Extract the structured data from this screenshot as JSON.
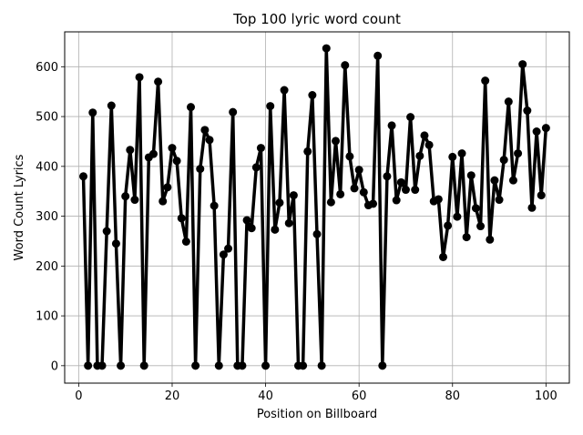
{
  "chart_data": {
    "type": "line",
    "title": "Top 100 lyric word count",
    "xlabel": "Position on Billboard",
    "ylabel": "Word Count Lyrics",
    "xlim": [
      -3,
      105
    ],
    "ylim": [
      -35,
      670
    ],
    "x_ticks": [
      0,
      20,
      40,
      60,
      80,
      100
    ],
    "y_ticks": [
      0,
      100,
      200,
      300,
      400,
      500,
      600
    ],
    "grid": true,
    "marker": "circle",
    "line_color": "#000000",
    "series": [
      {
        "x": [
          1,
          2,
          3,
          4,
          5,
          6,
          7,
          8,
          9,
          10,
          11,
          12,
          13,
          14,
          15,
          16,
          17,
          18,
          19,
          20,
          21,
          22,
          23,
          24,
          25,
          26,
          27,
          28,
          29,
          30,
          31,
          32,
          33,
          34,
          35,
          36,
          37,
          38,
          39,
          40,
          41,
          42,
          43,
          44,
          45,
          46,
          47,
          48,
          49,
          50,
          51,
          52,
          53,
          54,
          55,
          56,
          57,
          58,
          59,
          60,
          61,
          62,
          63,
          64,
          65,
          66,
          67,
          68,
          69,
          70,
          71,
          72,
          73,
          74,
          75,
          76,
          77,
          78,
          79,
          80,
          81,
          82,
          83,
          84,
          85,
          86,
          87,
          88,
          89,
          90,
          91,
          92,
          93,
          94,
          95,
          96,
          97,
          98,
          99,
          100
        ],
        "values": [
          380,
          0,
          508,
          0,
          0,
          270,
          522,
          245,
          0,
          340,
          433,
          333,
          579,
          0,
          418,
          425,
          570,
          330,
          358,
          437,
          411,
          296,
          249,
          519,
          0,
          395,
          473,
          453,
          321,
          0,
          223,
          235,
          509,
          0,
          0,
          292,
          276,
          398,
          437,
          0,
          521,
          273,
          327,
          553,
          286,
          342,
          0,
          0,
          430,
          543,
          264,
          0,
          637,
          328,
          451,
          344,
          603,
          420,
          356,
          393,
          348,
          322,
          325,
          622,
          0,
          380,
          482,
          332,
          368,
          353,
          499,
          353,
          421,
          462,
          443,
          330,
          334,
          218,
          281,
          419,
          299,
          426,
          258,
          382,
          316,
          280,
          572,
          253,
          372,
          333,
          413,
          530,
          372,
          426,
          605,
          512,
          317,
          470,
          342,
          477
        ]
      }
    ]
  }
}
